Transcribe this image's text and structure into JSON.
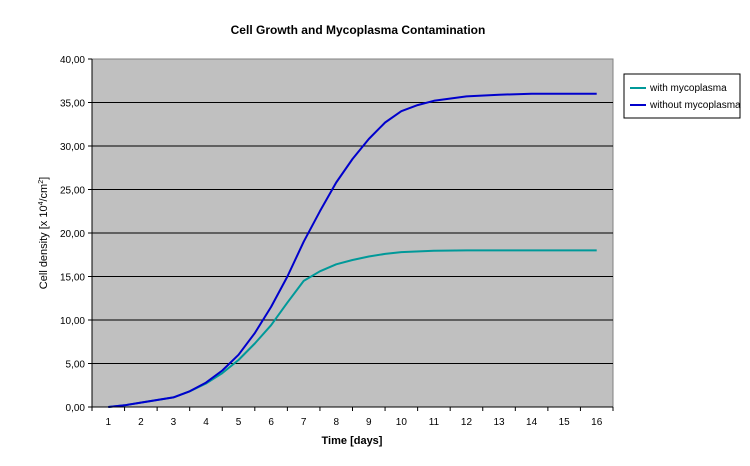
{
  "chart_data": {
    "type": "line",
    "title": "Cell Growth and Mycoplasma Contamination",
    "xlabel": "Time [days]",
    "ylabel_main": "Cell density [x 10",
    "ylabel_sup1": "4",
    "ylabel_mid": "/cm",
    "ylabel_sup2": "2",
    "ylabel_end": "]",
    "xlim": [
      0.5,
      16.5
    ],
    "ylim": [
      0,
      40
    ],
    "x_ticks": [
      "1",
      "2",
      "3",
      "4",
      "5",
      "6",
      "7",
      "8",
      "9",
      "10",
      "11",
      "12",
      "13",
      "14",
      "15",
      "16"
    ],
    "y_ticks": [
      "0,00",
      "5,00",
      "10,00",
      "15,00",
      "20,00",
      "25,00",
      "30,00",
      "35,00",
      "40,00"
    ],
    "y_tick_values": [
      0,
      5,
      10,
      15,
      20,
      25,
      30,
      35,
      40
    ],
    "grid": true,
    "legend_position": "right",
    "plot_background": "#c0c0c0",
    "series": [
      {
        "name": "with mycoplasma",
        "color": "#009999",
        "points": [
          [
            1,
            0
          ],
          [
            1.5,
            0.2
          ],
          [
            2,
            0.5
          ],
          [
            2.5,
            0.8
          ],
          [
            3,
            1.1
          ],
          [
            3.5,
            1.8
          ],
          [
            4,
            2.7
          ],
          [
            4.5,
            3.9
          ],
          [
            5,
            5.4
          ],
          [
            5.5,
            7.3
          ],
          [
            6,
            9.4
          ],
          [
            6.5,
            12
          ],
          [
            7,
            14.5
          ],
          [
            7.5,
            15.6
          ],
          [
            8,
            16.4
          ],
          [
            8.5,
            16.9
          ],
          [
            9,
            17.3
          ],
          [
            9.5,
            17.6
          ],
          [
            10,
            17.8
          ],
          [
            11,
            17.95
          ],
          [
            12,
            18
          ],
          [
            13,
            18
          ],
          [
            14,
            18
          ],
          [
            15,
            18
          ],
          [
            16,
            18
          ]
        ]
      },
      {
        "name": "without mycoplasma",
        "color": "#0000cc",
        "points": [
          [
            1,
            0
          ],
          [
            1.5,
            0.2
          ],
          [
            2,
            0.5
          ],
          [
            2.5,
            0.8
          ],
          [
            3,
            1.1
          ],
          [
            3.5,
            1.8
          ],
          [
            4,
            2.8
          ],
          [
            4.5,
            4.2
          ],
          [
            5,
            6
          ],
          [
            5.5,
            8.5
          ],
          [
            6,
            11.5
          ],
          [
            6.5,
            15
          ],
          [
            7,
            19
          ],
          [
            7.5,
            22.5
          ],
          [
            8,
            25.8
          ],
          [
            8.5,
            28.5
          ],
          [
            9,
            30.8
          ],
          [
            9.5,
            32.7
          ],
          [
            10,
            34
          ],
          [
            10.5,
            34.7
          ],
          [
            11,
            35.2
          ],
          [
            12,
            35.7
          ],
          [
            13,
            35.9
          ],
          [
            14,
            36
          ],
          [
            15,
            36
          ],
          [
            16,
            36
          ]
        ]
      }
    ]
  }
}
